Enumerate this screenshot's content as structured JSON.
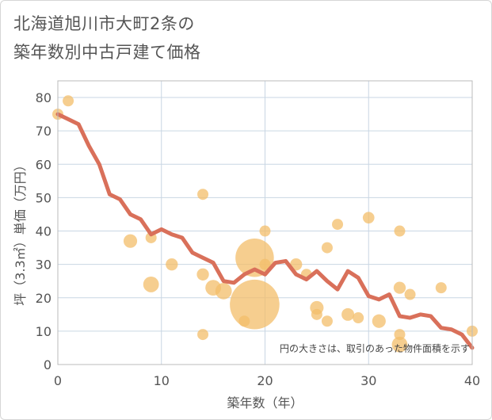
{
  "title_line1": "北海道旭川市大町2条の",
  "title_line2": "築年数別中古戸建て価格",
  "chart_data": {
    "type": "scatter+line",
    "xlabel": "築年数（年）",
    "ylabel": "坪（3.3㎡）単価（万円）",
    "xlim": [
      0,
      40
    ],
    "ylim": [
      0,
      85
    ],
    "xticks": [
      0,
      10,
      20,
      30,
      40
    ],
    "yticks": [
      0,
      10,
      20,
      30,
      40,
      50,
      60,
      70,
      80
    ],
    "note": "円の大きさは、取引のあった物件面積を示す",
    "colors": {
      "line": "#d9705a",
      "bubble": "#f3be6a",
      "grid": "#c9d6e3",
      "plot_border": "#bbbbbb"
    },
    "line": {
      "x": [
        0,
        1,
        2,
        3,
        4,
        5,
        6,
        7,
        8,
        9,
        10,
        11,
        12,
        13,
        14,
        15,
        16,
        17,
        18,
        19,
        20,
        21,
        22,
        23,
        24,
        25,
        26,
        27,
        28,
        29,
        30,
        31,
        32,
        33,
        34,
        35,
        36,
        37,
        38,
        39,
        40
      ],
      "y": [
        75,
        73.5,
        72,
        65.5,
        60,
        51,
        49.5,
        45,
        43.5,
        39,
        40.5,
        39,
        38,
        33.5,
        32,
        30.5,
        25,
        24.5,
        27,
        28.5,
        27,
        30.5,
        31,
        27,
        25.5,
        28,
        25,
        22.5,
        28,
        26,
        20.5,
        19.5,
        21,
        14.5,
        14,
        15,
        14.5,
        11,
        10.5,
        9,
        5
      ]
    },
    "bubbles": [
      {
        "x": 0,
        "y": 75,
        "size": 1
      },
      {
        "x": 1,
        "y": 79,
        "size": 1
      },
      {
        "x": 7,
        "y": 37,
        "size": 1.5
      },
      {
        "x": 9,
        "y": 38,
        "size": 1
      },
      {
        "x": 9,
        "y": 24,
        "size": 2
      },
      {
        "x": 11,
        "y": 30,
        "size": 1.2
      },
      {
        "x": 14,
        "y": 51,
        "size": 1
      },
      {
        "x": 14,
        "y": 27,
        "size": 1.2
      },
      {
        "x": 14,
        "y": 9,
        "size": 1
      },
      {
        "x": 15,
        "y": 23,
        "size": 2
      },
      {
        "x": 16,
        "y": 22,
        "size": 2.2
      },
      {
        "x": 18,
        "y": 13,
        "size": 1
      },
      {
        "x": 19,
        "y": 32,
        "size": 12
      },
      {
        "x": 19,
        "y": 18,
        "size": 20
      },
      {
        "x": 20,
        "y": 40,
        "size": 1
      },
      {
        "x": 20,
        "y": 30,
        "size": 1
      },
      {
        "x": 23,
        "y": 30,
        "size": 1.2
      },
      {
        "x": 24,
        "y": 27,
        "size": 1
      },
      {
        "x": 25,
        "y": 17,
        "size": 1.5
      },
      {
        "x": 25,
        "y": 15,
        "size": 1
      },
      {
        "x": 26,
        "y": 35,
        "size": 1
      },
      {
        "x": 26,
        "y": 13,
        "size": 1
      },
      {
        "x": 27,
        "y": 42,
        "size": 1
      },
      {
        "x": 28,
        "y": 15,
        "size": 1.3
      },
      {
        "x": 29,
        "y": 14,
        "size": 1
      },
      {
        "x": 30,
        "y": 44,
        "size": 1.1
      },
      {
        "x": 31,
        "y": 13,
        "size": 1.5
      },
      {
        "x": 33,
        "y": 40,
        "size": 1
      },
      {
        "x": 33,
        "y": 23,
        "size": 1.2
      },
      {
        "x": 33,
        "y": 9,
        "size": 1
      },
      {
        "x": 33,
        "y": 6,
        "size": 2
      },
      {
        "x": 34,
        "y": 21,
        "size": 1
      },
      {
        "x": 37,
        "y": 23,
        "size": 1
      },
      {
        "x": 40,
        "y": 10,
        "size": 1
      }
    ]
  }
}
